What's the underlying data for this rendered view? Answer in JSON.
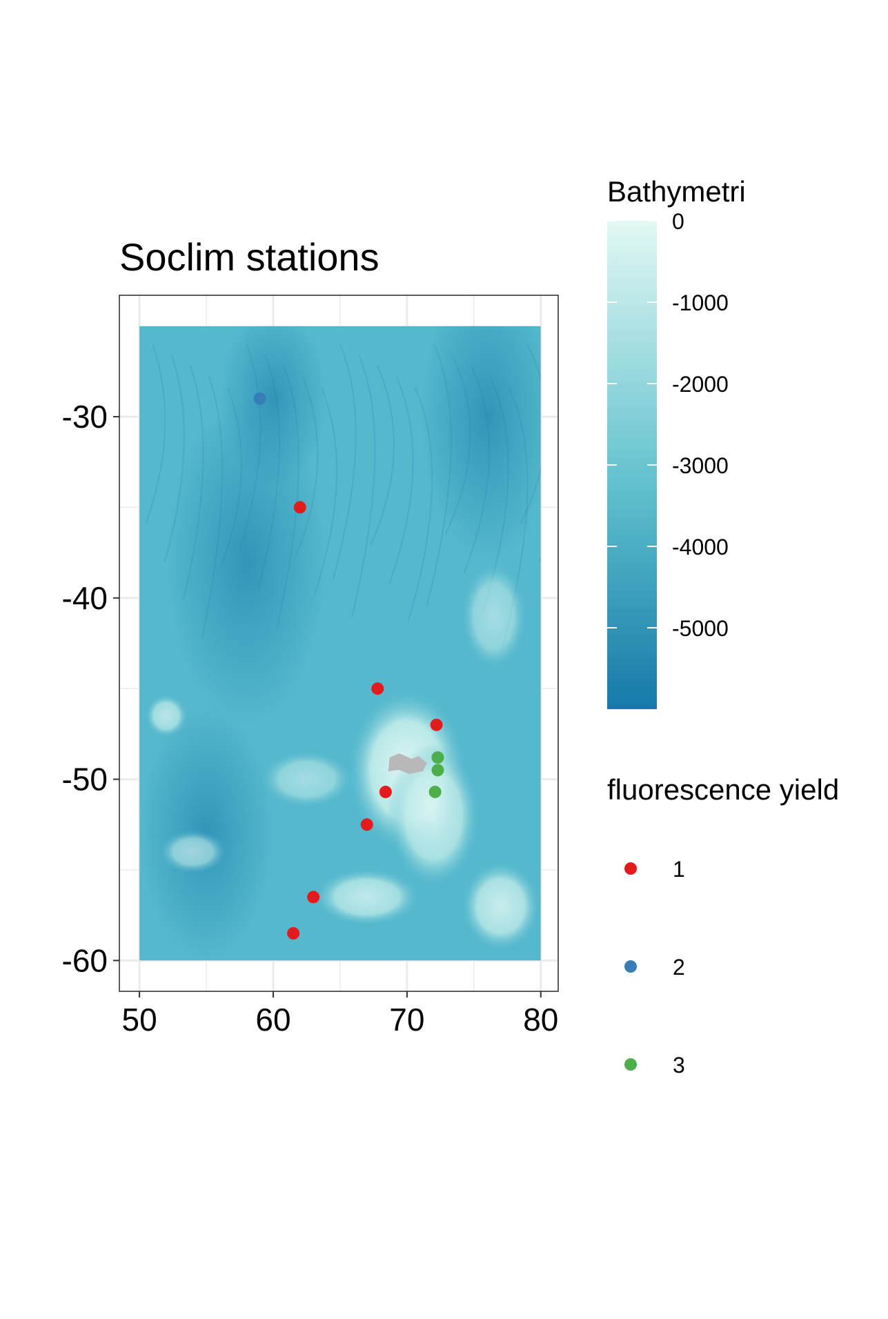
{
  "title": "Soclim stations",
  "map": {
    "x_ticks": [
      50,
      60,
      70,
      80
    ],
    "y_ticks": [
      -30,
      -40,
      -50,
      -60
    ],
    "x_range": [
      48.5,
      81.3
    ],
    "y_range": [
      -61.7,
      -23.3
    ],
    "raster_extent": {
      "lon": [
        50,
        80
      ],
      "lat": [
        -60,
        -25
      ]
    },
    "grid": true
  },
  "stations": [
    {
      "lon": 59.0,
      "lat": -29.0,
      "fluorescence_yield": 2
    },
    {
      "lon": 62.0,
      "lat": -35.0,
      "fluorescence_yield": 1
    },
    {
      "lon": 67.8,
      "lat": -45.0,
      "fluorescence_yield": 1
    },
    {
      "lon": 72.2,
      "lat": -47.0,
      "fluorescence_yield": 1
    },
    {
      "lon": 72.3,
      "lat": -48.8,
      "fluorescence_yield": 3
    },
    {
      "lon": 72.3,
      "lat": -49.5,
      "fluorescence_yield": 3
    },
    {
      "lon": 72.1,
      "lat": -50.7,
      "fluorescence_yield": 3
    },
    {
      "lon": 68.4,
      "lat": -50.7,
      "fluorescence_yield": 1
    },
    {
      "lon": 67.0,
      "lat": -52.5,
      "fluorescence_yield": 1
    },
    {
      "lon": 63.0,
      "lat": -56.5,
      "fluorescence_yield": 1
    },
    {
      "lon": 61.5,
      "lat": -58.5,
      "fluorescence_yield": 1
    }
  ],
  "bathymetry_legend": {
    "title": "Bathymetri",
    "labels": [
      "0",
      "-1000",
      "-2000",
      "-3000",
      "-4000",
      "-5000"
    ],
    "values": [
      0,
      -1000,
      -2000,
      -3000,
      -4000,
      -5000
    ],
    "range": [
      -6000,
      0
    ],
    "colors": {
      "shallow": "#e2f8f3",
      "mid": "#5fc0cd",
      "deep": "#1679a8"
    }
  },
  "fluorescence_legend": {
    "title": "fluorescence yield",
    "items": [
      {
        "label": "1",
        "color": "#e41a1c"
      },
      {
        "label": "2",
        "color": "#377eb8"
      },
      {
        "label": "3",
        "color": "#4daf4a"
      }
    ]
  },
  "colors": {
    "deep_water": "#2a96be",
    "mid_water": "#55b8cd",
    "shelf": "#bdebe8",
    "plateau": "#e6f9f5",
    "land": "#b8b8b8",
    "grid": "#ebebeb",
    "panel_border": "#333333"
  }
}
